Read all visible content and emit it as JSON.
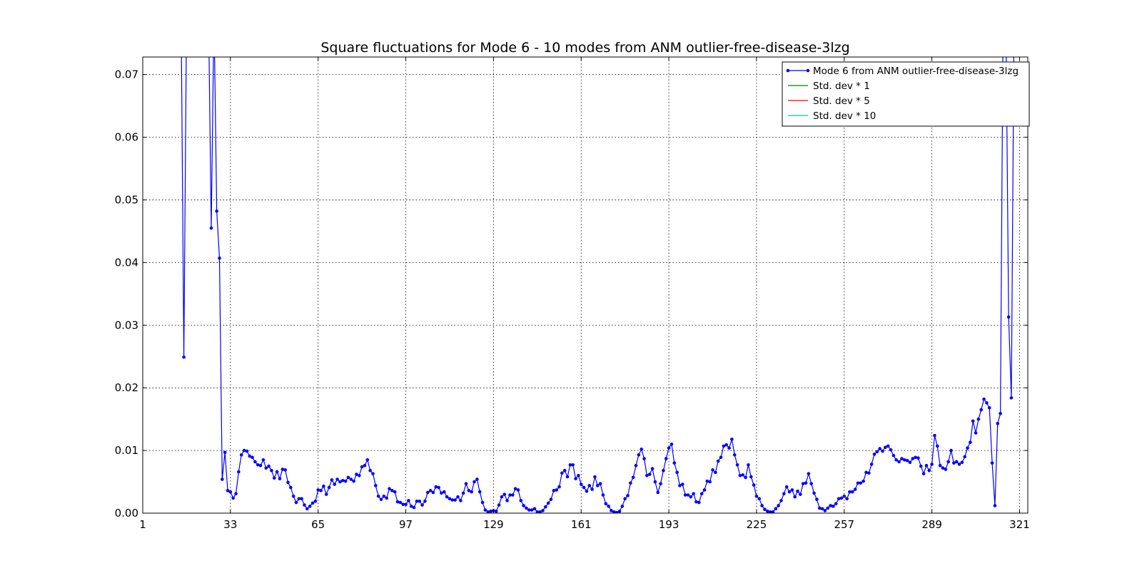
{
  "chart_data": {
    "type": "line",
    "title": "Square fluctuations for Mode 6 - 10 modes from ANM outlier-free-disease-3lzg",
    "xlabel": "",
    "ylabel": "",
    "xlim": [
      1,
      324
    ],
    "ylim": [
      0,
      0.0728
    ],
    "xticks": [
      "1",
      "33",
      "65",
      "97",
      "129",
      "161",
      "193",
      "225",
      "257",
      "289",
      "321"
    ],
    "yticks": [
      "0.00",
      "0.01",
      "0.02",
      "0.03",
      "0.04",
      "0.05",
      "0.06",
      "0.07"
    ],
    "grid": true,
    "legend_position": "top-right",
    "series": [
      {
        "name": "Mode 6 from ANM outlier-free-disease-3lzg",
        "color": "#0000ff",
        "marker": "point",
        "x": [
          15,
          16,
          17,
          25,
          26,
          27,
          28,
          29,
          30,
          31,
          32,
          33,
          34,
          35,
          36,
          37,
          38,
          39,
          40,
          41,
          42,
          43,
          44,
          45,
          46,
          47,
          48,
          49,
          50,
          51,
          52,
          53,
          54,
          55,
          56,
          57,
          58,
          59,
          60,
          61,
          62,
          63,
          64,
          65,
          66,
          67,
          68,
          69,
          70,
          71,
          72,
          73,
          74,
          75,
          76,
          77,
          78,
          79,
          80,
          81,
          82,
          83,
          84,
          85,
          86,
          87,
          88,
          89,
          90,
          91,
          92,
          93,
          94,
          95,
          96,
          97,
          98,
          99,
          100,
          101,
          102,
          103,
          104,
          105,
          106,
          107,
          108,
          109,
          110,
          111,
          112,
          113,
          114,
          115,
          116,
          117,
          118,
          119,
          120,
          121,
          122,
          123,
          124,
          125,
          126,
          127,
          128,
          129,
          130,
          131,
          132,
          133,
          134,
          135,
          136,
          137,
          138,
          139,
          140,
          141,
          142,
          143,
          144,
          145,
          146,
          147,
          148,
          149,
          150,
          151,
          152,
          153,
          154,
          155,
          156,
          157,
          158,
          159,
          160,
          161,
          162,
          163,
          164,
          165,
          166,
          167,
          168,
          169,
          170,
          171,
          172,
          173,
          174,
          175,
          176,
          177,
          178,
          179,
          180,
          181,
          182,
          183,
          184,
          185,
          186,
          187,
          188,
          189,
          190,
          191,
          192,
          193,
          194,
          195,
          196,
          197,
          198,
          199,
          200,
          201,
          202,
          203,
          204,
          205,
          206,
          207,
          208,
          209,
          210,
          211,
          212,
          213,
          214,
          215,
          216,
          217,
          218,
          219,
          220,
          221,
          222,
          223,
          224,
          225,
          226,
          227,
          228,
          229,
          230,
          231,
          232,
          233,
          234,
          235,
          236,
          237,
          238,
          239,
          240,
          241,
          242,
          243,
          244,
          245,
          246,
          247,
          248,
          249,
          250,
          251,
          252,
          253,
          254,
          255,
          256,
          257,
          258,
          259,
          260,
          261,
          262,
          263,
          264,
          265,
          266,
          267,
          268,
          269,
          270,
          271,
          272,
          273,
          274,
          275,
          276,
          277,
          278,
          279,
          280,
          281,
          282,
          283,
          284,
          285,
          286,
          287,
          288,
          289,
          290,
          291,
          292,
          293,
          294,
          295,
          296,
          297,
          298,
          299,
          300,
          301,
          302,
          303,
          304,
          305,
          306,
          307,
          308,
          309,
          310,
          311,
          312,
          313,
          314,
          315,
          316,
          317,
          318,
          319
        ],
        "y": [
          0.08,
          0.0249,
          0.08,
          0.08,
          0.0455,
          0.08,
          0.0482,
          0.0407,
          0.0054,
          0.0097,
          0.0036,
          0.0034,
          0.0024,
          0.0031,
          0.0066,
          0.0093,
          0.01,
          0.0099,
          0.0091,
          0.0089,
          0.0082,
          0.0077,
          0.0076,
          0.0085,
          0.0072,
          0.0075,
          0.0068,
          0.0056,
          0.0066,
          0.0055,
          0.007,
          0.0069,
          0.0049,
          0.0041,
          0.0027,
          0.0017,
          0.0023,
          0.0023,
          0.0013,
          0.0007,
          0.0011,
          0.0016,
          0.0019,
          0.0037,
          0.0036,
          0.0043,
          0.003,
          0.0041,
          0.0053,
          0.0046,
          0.0054,
          0.005,
          0.0052,
          0.0051,
          0.0057,
          0.0054,
          0.0051,
          0.0062,
          0.006,
          0.0074,
          0.0076,
          0.0085,
          0.0068,
          0.0063,
          0.0044,
          0.0027,
          0.0022,
          0.0027,
          0.0024,
          0.0039,
          0.0036,
          0.0034,
          0.0018,
          0.0017,
          0.0014,
          0.0014,
          0.002,
          0.0011,
          0.0009,
          0.0019,
          0.0019,
          0.0013,
          0.0019,
          0.0033,
          0.0036,
          0.0033,
          0.0042,
          0.0041,
          0.0032,
          0.0034,
          0.0026,
          0.0023,
          0.0021,
          0.0021,
          0.0026,
          0.002,
          0.0032,
          0.0047,
          0.0036,
          0.0034,
          0.005,
          0.0054,
          0.0034,
          0.0017,
          0.0005,
          0.0002,
          0.0003,
          0.0004,
          0.0003,
          0.0013,
          0.0026,
          0.003,
          0.002,
          0.0029,
          0.0029,
          0.0039,
          0.0037,
          0.002,
          0.0012,
          0.0008,
          0.0005,
          0.0005,
          0.0007,
          0.0002,
          0.0002,
          0.0004,
          0.001,
          0.0016,
          0.0022,
          0.0036,
          0.0037,
          0.0042,
          0.0064,
          0.0068,
          0.0058,
          0.0077,
          0.0077,
          0.0055,
          0.006,
          0.0046,
          0.0041,
          0.0035,
          0.0044,
          0.0038,
          0.0058,
          0.0044,
          0.0047,
          0.0029,
          0.0015,
          0.0011,
          0.0004,
          0.0002,
          0.0001,
          0.0003,
          0.0011,
          0.0023,
          0.0028,
          0.0048,
          0.0057,
          0.0076,
          0.0093,
          0.0102,
          0.0087,
          0.006,
          0.0062,
          0.0071,
          0.005,
          0.0033,
          0.0047,
          0.0068,
          0.0087,
          0.0104,
          0.011,
          0.008,
          0.0065,
          0.0044,
          0.0046,
          0.0029,
          0.0029,
          0.0026,
          0.0031,
          0.0018,
          0.0017,
          0.0031,
          0.0037,
          0.0051,
          0.005,
          0.0069,
          0.0065,
          0.0083,
          0.0089,
          0.0107,
          0.0109,
          0.0104,
          0.0118,
          0.0093,
          0.0077,
          0.006,
          0.0061,
          0.0057,
          0.0077,
          0.0058,
          0.0045,
          0.0027,
          0.0023,
          0.0012,
          0.0006,
          0.0003,
          0.0002,
          0.0002,
          0.0007,
          0.0012,
          0.002,
          0.0031,
          0.0042,
          0.0034,
          0.0037,
          0.0026,
          0.0035,
          0.003,
          0.0047,
          0.0048,
          0.0063,
          0.0047,
          0.0032,
          0.0022,
          0.0008,
          0.0007,
          0.0004,
          0.0008,
          0.0012,
          0.0011,
          0.0015,
          0.0023,
          0.0024,
          0.0027,
          0.0023,
          0.0034,
          0.0034,
          0.0038,
          0.0048,
          0.0048,
          0.0051,
          0.0065,
          0.0064,
          0.0078,
          0.0094,
          0.0098,
          0.0103,
          0.0099,
          0.0105,
          0.0107,
          0.0101,
          0.0092,
          0.0085,
          0.0082,
          0.0087,
          0.0085,
          0.0084,
          0.0081,
          0.0087,
          0.0089,
          0.0088,
          0.0075,
          0.0063,
          0.0076,
          0.0068,
          0.0078,
          0.0124,
          0.0107,
          0.0076,
          0.0072,
          0.007,
          0.0082,
          0.01,
          0.008,
          0.0082,
          0.0078,
          0.0081,
          0.009,
          0.0104,
          0.0113,
          0.0147,
          0.0128,
          0.015,
          0.0165,
          0.0182,
          0.0176,
          0.0168,
          0.008,
          0.0012,
          0.0143,
          0.0159,
          0.08,
          0.08,
          0.0313,
          0.0184,
          0.08
        ]
      },
      {
        "name": "Std. dev * 1",
        "color": "#008000",
        "y": []
      },
      {
        "name": "Std. dev * 5",
        "color": "#ff0000",
        "y": []
      },
      {
        "name": "Std. dev * 10",
        "color": "#00bfbf",
        "y": []
      }
    ]
  }
}
